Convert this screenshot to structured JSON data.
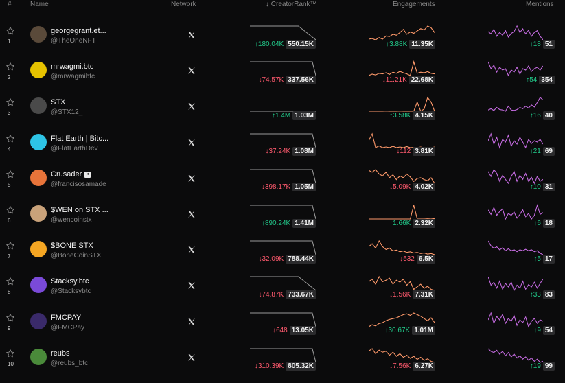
{
  "header": {
    "rank": "#",
    "name": "Name",
    "network": "Network",
    "creator_rank": "↓ CreatorRank™",
    "engagements": "Engagements",
    "mentions": "Mentions"
  },
  "colors": {
    "up": "#22c98a",
    "down": "#ff5a6e",
    "creator_line": "#9a9a9a",
    "engagement_line": "#ff9a6b",
    "mention_line": "#c46be0"
  },
  "rows": [
    {
      "rank": "1",
      "name": "georgegrant.et...",
      "handle": "@TheOneNFT",
      "network_icon": "x-icon",
      "verified": false,
      "creator_change": "↑180.04K",
      "creator_dir": "up",
      "creator_value": "550.15K",
      "eng_change": "↑3.88K",
      "eng_dir": "up",
      "eng_value": "11.35K",
      "men_change": "↑18",
      "men_dir": "up",
      "men_value": "51",
      "creator_trend": [
        100,
        100,
        100,
        100,
        100,
        100,
        100,
        100,
        100,
        100,
        100,
        100,
        100,
        100,
        100,
        98,
        96,
        94,
        92,
        90
      ],
      "eng_trend": [
        40,
        42,
        38,
        45,
        40,
        50,
        48,
        55,
        52,
        60,
        70,
        55,
        62,
        58,
        65,
        72,
        68,
        80,
        75,
        60
      ],
      "men_trend": [
        60,
        55,
        65,
        50,
        58,
        52,
        62,
        48,
        56,
        60,
        72,
        58,
        66,
        55,
        63,
        50,
        58,
        62,
        50,
        42
      ]
    },
    {
      "rank": "2",
      "name": "mrwagmi.btc",
      "handle": "@mrwagmibtc",
      "network_icon": "x-icon",
      "verified": false,
      "creator_change": "↓74.57K",
      "creator_dir": "down",
      "creator_value": "337.56K",
      "eng_change": "↓11.21K",
      "eng_dir": "down",
      "eng_value": "22.68K",
      "men_change": "↑54",
      "men_dir": "up",
      "men_value": "354",
      "creator_trend": [
        100,
        100,
        100,
        100,
        100,
        100,
        100,
        100,
        100,
        100,
        100,
        100,
        100,
        100,
        100,
        100,
        100,
        100,
        100,
        40
      ],
      "eng_trend": [
        40,
        45,
        42,
        48,
        46,
        50,
        44,
        52,
        48,
        55,
        50,
        46,
        40,
        90,
        48,
        52,
        50,
        54,
        48,
        46
      ],
      "men_trend": [
        70,
        60,
        65,
        55,
        62,
        58,
        60,
        50,
        58,
        55,
        62,
        52,
        60,
        58,
        64,
        56,
        60,
        62,
        58,
        64
      ]
    },
    {
      "rank": "3",
      "name": "STX",
      "handle": "@STX12_",
      "network_icon": "x-icon",
      "verified": false,
      "creator_change": "↑1.4M",
      "creator_dir": "up",
      "creator_value": "1.03M",
      "eng_change": "↑3.58K",
      "eng_dir": "up",
      "eng_value": "4.15K",
      "men_change": "↑16",
      "men_dir": "up",
      "men_value": "40",
      "creator_trend": [
        100,
        100,
        100,
        100,
        100,
        100,
        100,
        100,
        100,
        100,
        100,
        100,
        100,
        100,
        100,
        100,
        100,
        100,
        100,
        100
      ],
      "eng_trend": [
        20,
        20,
        20,
        20,
        20,
        21,
        20,
        20,
        20,
        21,
        20,
        20,
        20,
        20,
        60,
        20,
        30,
        80,
        60,
        20
      ],
      "men_trend": [
        40,
        45,
        38,
        50,
        42,
        40,
        35,
        55,
        40,
        38,
        42,
        50,
        45,
        55,
        48,
        60,
        52,
        70,
        90,
        80
      ]
    },
    {
      "rank": "4",
      "name": "Flat Earth | Bitc...",
      "handle": "@FlatEarthDev",
      "network_icon": "x-icon",
      "verified": false,
      "creator_change": "↓37.24K",
      "creator_dir": "down",
      "creator_value": "1.08M",
      "eng_change": "↓112",
      "eng_dir": "down",
      "eng_value": "3.81K",
      "men_change": "↑21",
      "men_dir": "up",
      "men_value": "69",
      "creator_trend": [
        100,
        100,
        100,
        100,
        100,
        100,
        100,
        100,
        100,
        100,
        100,
        100,
        100,
        100,
        100,
        100,
        100,
        100,
        100,
        60
      ],
      "eng_trend": [
        60,
        80,
        40,
        45,
        40,
        42,
        40,
        44,
        40,
        42,
        40,
        43,
        40,
        41,
        40,
        42,
        40,
        41,
        40,
        42
      ],
      "men_trend": [
        60,
        70,
        55,
        65,
        50,
        62,
        58,
        68,
        52,
        60,
        55,
        65,
        58,
        50,
        62,
        56,
        60,
        58,
        62,
        55
      ]
    },
    {
      "rank": "5",
      "name": "Crusader",
      "handle": "@francisosamade",
      "network_icon": "x-icon",
      "verified": true,
      "creator_change": "↓398.17K",
      "creator_dir": "down",
      "creator_value": "1.05M",
      "eng_change": "↓5.09K",
      "eng_dir": "down",
      "eng_value": "4.02K",
      "men_change": "↑10",
      "men_dir": "up",
      "men_value": "31",
      "creator_trend": [
        100,
        100,
        100,
        100,
        100,
        100,
        100,
        100,
        100,
        100,
        100,
        100,
        100,
        100,
        100,
        100,
        100,
        100,
        100,
        50
      ],
      "eng_trend": [
        70,
        65,
        72,
        60,
        55,
        65,
        50,
        58,
        45,
        55,
        50,
        60,
        52,
        40,
        48,
        50,
        45,
        42,
        50,
        35
      ],
      "men_trend": [
        60,
        55,
        62,
        58,
        50,
        56,
        52,
        48,
        55,
        60,
        50,
        56,
        52,
        58,
        50,
        54,
        48,
        55,
        50,
        52
      ]
    },
    {
      "rank": "6",
      "name": "$WEN on STX ...",
      "handle": "@wencoinstx",
      "network_icon": "x-icon",
      "verified": false,
      "creator_change": "↑890.24K",
      "creator_dir": "up",
      "creator_value": "1.41M",
      "eng_change": "↑1.66K",
      "eng_dir": "up",
      "eng_value": "2.32K",
      "men_change": "↑6",
      "men_dir": "up",
      "men_value": "18",
      "creator_trend": [
        100,
        100,
        100,
        100,
        100,
        100,
        100,
        100,
        100,
        100,
        100,
        100,
        100,
        100,
        100,
        100,
        100,
        100,
        100,
        80
      ],
      "eng_trend": [
        20,
        20,
        20,
        20,
        20,
        20,
        20,
        20,
        20,
        20,
        20,
        20,
        20,
        80,
        20,
        20,
        20,
        21,
        20,
        22
      ],
      "men_trend": [
        70,
        60,
        75,
        58,
        66,
        72,
        50,
        62,
        58,
        65,
        52,
        60,
        70,
        55,
        62,
        50,
        58,
        80,
        60,
        64
      ]
    },
    {
      "rank": "7",
      "name": "$BONE STX",
      "handle": "@BoneCoinSTX",
      "network_icon": "x-icon",
      "verified": false,
      "creator_change": "↓32.09K",
      "creator_dir": "down",
      "creator_value": "788.44K",
      "eng_change": "↓532",
      "eng_dir": "down",
      "eng_value": "6.5K",
      "men_change": "↑5",
      "men_dir": "up",
      "men_value": "17",
      "creator_trend": [
        100,
        100,
        100,
        100,
        100,
        100,
        100,
        100,
        100,
        100,
        100,
        100,
        100,
        100,
        100,
        100,
        100,
        100,
        100,
        80
      ],
      "eng_trend": [
        60,
        70,
        55,
        80,
        60,
        50,
        55,
        45,
        48,
        42,
        45,
        40,
        42,
        38,
        40,
        36,
        38,
        34,
        36,
        32
      ],
      "men_trend": [
        70,
        60,
        55,
        58,
        52,
        56,
        50,
        54,
        50,
        52,
        48,
        52,
        50,
        53,
        50,
        52,
        48,
        50,
        45,
        42
      ]
    },
    {
      "rank": "8",
      "name": "Stacksy.btc",
      "handle": "@Stacksybtc",
      "network_icon": "x-icon",
      "verified": false,
      "creator_change": "↓74.87K",
      "creator_dir": "down",
      "creator_value": "733.67K",
      "eng_change": "↓1.56K",
      "eng_dir": "down",
      "eng_value": "7.31K",
      "men_change": "↑33",
      "men_dir": "up",
      "men_value": "83",
      "creator_trend": [
        100,
        100,
        100,
        100,
        100,
        100,
        100,
        100,
        100,
        100,
        100,
        100,
        100,
        100,
        100,
        98,
        96,
        94,
        92,
        90
      ],
      "eng_trend": [
        55,
        60,
        50,
        65,
        55,
        58,
        62,
        50,
        58,
        54,
        60,
        48,
        55,
        40,
        45,
        50,
        42,
        46,
        40,
        38
      ],
      "men_trend": [
        70,
        55,
        60,
        50,
        62,
        48,
        58,
        52,
        60,
        46,
        55,
        50,
        62,
        48,
        56,
        52,
        60,
        50,
        58,
        66
      ]
    },
    {
      "rank": "9",
      "name": "FMCPAY",
      "handle": "@FMCPay",
      "network_icon": "x-icon",
      "verified": false,
      "creator_change": "↓648",
      "creator_dir": "down",
      "creator_value": "13.05K",
      "eng_change": "↑30.67K",
      "eng_dir": "up",
      "eng_value": "1.01M",
      "men_change": "↑9",
      "men_dir": "up",
      "men_value": "54",
      "creator_trend": [
        100,
        100,
        100,
        100,
        100,
        100,
        100,
        100,
        100,
        100,
        100,
        100,
        100,
        100,
        100,
        100,
        100,
        100,
        100,
        60
      ],
      "eng_trend": [
        40,
        45,
        42,
        48,
        50,
        55,
        58,
        60,
        62,
        66,
        70,
        72,
        68,
        74,
        70,
        66,
        60,
        55,
        62,
        50
      ],
      "men_trend": [
        60,
        70,
        55,
        65,
        60,
        68,
        55,
        62,
        58,
        66,
        52,
        60,
        56,
        64,
        50,
        58,
        62,
        55,
        60,
        58
      ]
    },
    {
      "rank": "10",
      "name": "reubs",
      "handle": "@reubs_btc",
      "network_icon": "x-icon",
      "verified": false,
      "creator_change": "↓310.39K",
      "creator_dir": "down",
      "creator_value": "805.32K",
      "eng_change": "↓7.56K",
      "eng_dir": "down",
      "eng_value": "6.27K",
      "men_change": "↑19",
      "men_dir": "up",
      "men_value": "99",
      "creator_trend": [
        100,
        100,
        100,
        100,
        100,
        100,
        100,
        100,
        100,
        100,
        100,
        100,
        100,
        100,
        100,
        100,
        100,
        100,
        100,
        55
      ],
      "eng_trend": [
        60,
        65,
        55,
        62,
        58,
        60,
        52,
        58,
        50,
        55,
        48,
        52,
        46,
        50,
        44,
        48,
        42,
        45,
        40,
        38
      ],
      "men_trend": [
        65,
        60,
        58,
        62,
        55,
        60,
        52,
        58,
        50,
        55,
        48,
        52,
        46,
        50,
        44,
        48,
        42,
        46,
        40,
        42
      ]
    }
  ]
}
